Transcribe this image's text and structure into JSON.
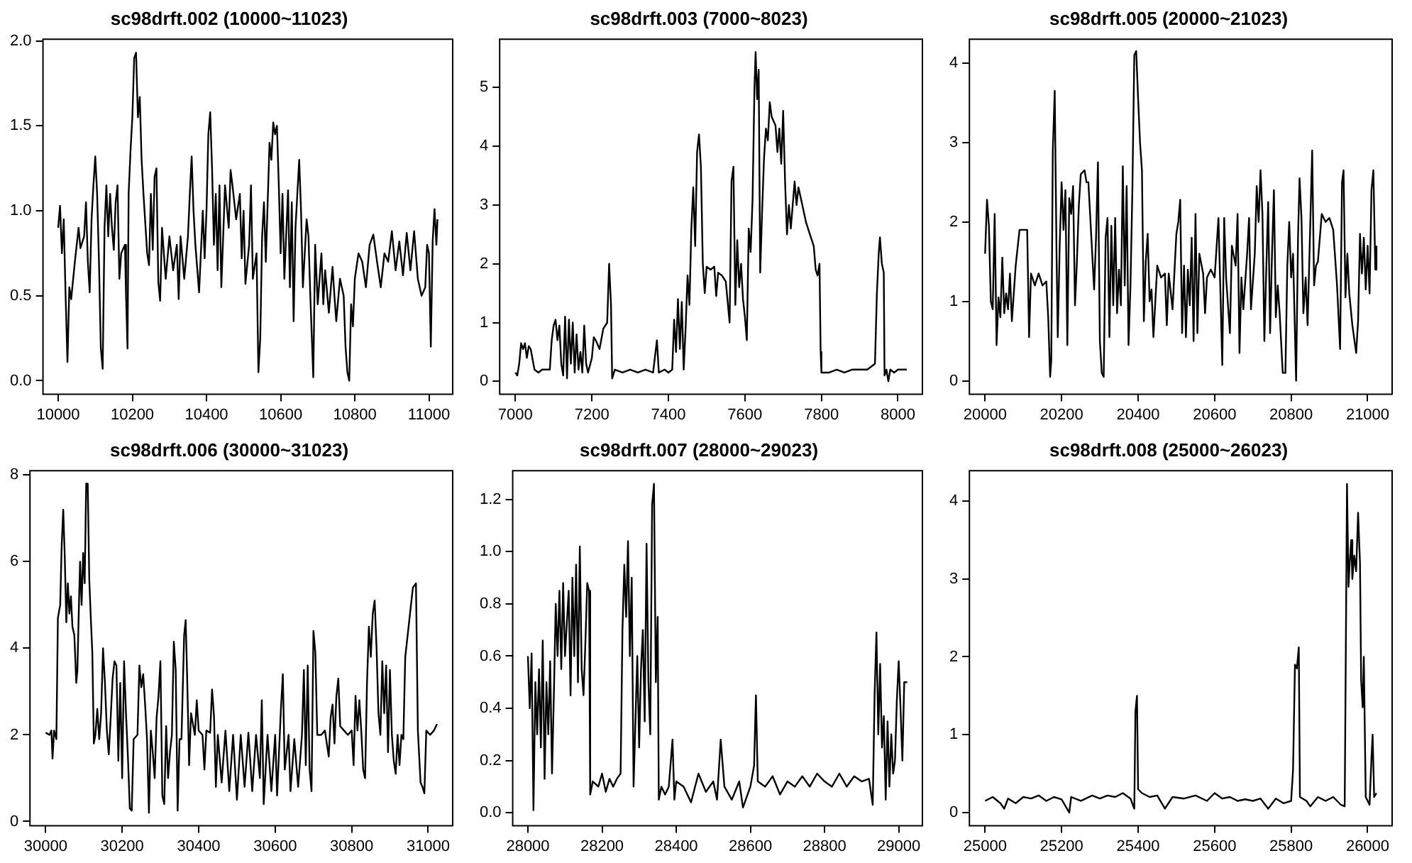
{
  "chart_data": [
    {
      "type": "line",
      "title": "sc98drft.002 (10000~11023)",
      "xlim": [
        9959,
        11064
      ],
      "xticks": [
        10000,
        10200,
        10400,
        10600,
        10800,
        11000
      ],
      "ylim": [
        -0.08,
        2.01
      ],
      "yticks": [
        {
          "value": 0,
          "label": "0.0"
        },
        {
          "value": 0.5,
          "label": "0.5"
        },
        {
          "value": 1,
          "label": "1.0"
        },
        {
          "value": 1.5,
          "label": "1.5"
        },
        {
          "value": 2,
          "label": "2.0"
        }
      ],
      "grid": false,
      "legend": false,
      "marker": "none",
      "line_style": "solid",
      "series": [
        {
          "color": "#000000",
          "x": [
            10000,
            10005,
            10010,
            10015,
            10020,
            10025,
            10030,
            10035,
            10045,
            10055,
            10060,
            10070,
            10075,
            10080,
            10085,
            10090,
            10095,
            10100,
            10105,
            10110,
            10115,
            10120,
            10125,
            10130,
            10135,
            10140,
            10145,
            10150,
            10155,
            10160,
            10165,
            10170,
            10180,
            10183,
            10187,
            10190,
            10195,
            10200,
            10205,
            10210,
            10215,
            10220,
            10225,
            10230,
            10240,
            10245,
            10250,
            10255,
            10260,
            10265,
            10270,
            10275,
            10280,
            10290,
            10300,
            10310,
            10320,
            10325,
            10330,
            10340,
            10350,
            10355,
            10360,
            10365,
            10370,
            10380,
            10390,
            10395,
            10400,
            10405,
            10410,
            10415,
            10420,
            10425,
            10430,
            10435,
            10440,
            10450,
            10460,
            10465,
            10470,
            10480,
            10490,
            10495,
            10500,
            10505,
            10515,
            10520,
            10525,
            10535,
            10540,
            10545,
            10550,
            10555,
            10560,
            10570,
            10575,
            10580,
            10585,
            10590,
            10595,
            10600,
            10605,
            10610,
            10620,
            10625,
            10630,
            10635,
            10640,
            10650,
            10655,
            10660,
            10670,
            10675,
            10680,
            10688,
            10693,
            10700,
            10710,
            10715,
            10720,
            10730,
            10740,
            10745,
            10750,
            10760,
            10770,
            10775,
            10780,
            10785,
            10790,
            10795,
            10800,
            10810,
            10820,
            10830,
            10840,
            10850,
            10860,
            10870,
            10880,
            10890,
            10900,
            10910,
            10920,
            10930,
            10940,
            10950,
            10960,
            10970,
            10980,
            10990,
            10995,
            11000,
            11005,
            11010,
            11015,
            11020,
            11023
          ],
          "values": [
            0.9,
            1.03,
            0.75,
            0.95,
            0.5,
            0.11,
            0.55,
            0.48,
            0.7,
            0.9,
            0.78,
            0.85,
            1.05,
            0.7,
            0.52,
            0.95,
            1.15,
            1.32,
            1.1,
            0.7,
            0.19,
            0.07,
            0.9,
            1.15,
            0.85,
            1.1,
            0.9,
            0.77,
            1.05,
            1.15,
            0.6,
            0.75,
            0.8,
            0.5,
            0.19,
            1.1,
            1.35,
            1.55,
            1.9,
            1.93,
            1.55,
            1.67,
            1.3,
            1.1,
            0.75,
            0.68,
            1.1,
            0.77,
            1.2,
            1.25,
            0.58,
            0.47,
            0.9,
            0.6,
            0.85,
            0.65,
            0.8,
            0.48,
            0.85,
            0.6,
            0.85,
            1.1,
            1.32,
            1.0,
            0.8,
            0.52,
            1.0,
            0.72,
            1.0,
            1.45,
            1.58,
            1.25,
            0.8,
            1.1,
            0.65,
            1.15,
            0.55,
            1.15,
            0.9,
            1.24,
            1.15,
            0.95,
            1.1,
            0.72,
            1.0,
            0.57,
            0.8,
            1.15,
            0.6,
            0.75,
            0.05,
            0.25,
            0.85,
            1.05,
            0.7,
            1.4,
            1.3,
            1.52,
            1.45,
            1.5,
            1.15,
            0.75,
            1.1,
            0.6,
            1.12,
            0.55,
            1.05,
            0.35,
            0.9,
            1.3,
            1.0,
            0.55,
            0.95,
            0.85,
            0.5,
            0.02,
            0.8,
            0.45,
            0.75,
            0.45,
            0.65,
            0.4,
            0.67,
            0.5,
            0.35,
            0.6,
            0.5,
            0.2,
            0.05,
            0.0,
            0.45,
            0.32,
            0.6,
            0.75,
            0.7,
            0.55,
            0.8,
            0.86,
            0.7,
            0.55,
            0.75,
            0.7,
            0.88,
            0.65,
            0.82,
            0.62,
            0.87,
            0.65,
            0.88,
            0.6,
            0.5,
            0.55,
            0.8,
            0.75,
            0.2,
            0.82,
            1.01,
            0.8,
            0.95
          ]
        }
      ]
    },
    {
      "type": "line",
      "title": "sc98drft.003 (7000~8023)",
      "xlim": [
        6959,
        8064
      ],
      "xticks": [
        7000,
        7200,
        7400,
        7600,
        7800,
        8000
      ],
      "ylim": [
        -0.22,
        5.82
      ],
      "yticks": [
        0,
        1,
        2,
        3,
        4,
        5
      ],
      "grid": false,
      "legend": false,
      "marker": "none",
      "line_style": "solid",
      "series": [
        {
          "color": "#000000",
          "x": [
            7000,
            7005,
            7010,
            7015,
            7020,
            7025,
            7030,
            7035,
            7040,
            7050,
            7060,
            7070,
            7080,
            7090,
            7095,
            7100,
            7105,
            7110,
            7115,
            7120,
            7125,
            7130,
            7135,
            7140,
            7145,
            7150,
            7155,
            7160,
            7165,
            7170,
            7175,
            7180,
            7185,
            7190,
            7200,
            7205,
            7210,
            7220,
            7230,
            7240,
            7245,
            7250,
            7253,
            7260,
            7280,
            7300,
            7320,
            7340,
            7360,
            7370,
            7375,
            7390,
            7400,
            7410,
            7415,
            7420,
            7425,
            7430,
            7435,
            7440,
            7445,
            7450,
            7455,
            7460,
            7465,
            7470,
            7475,
            7480,
            7485,
            7490,
            7495,
            7500,
            7510,
            7520,
            7525,
            7530,
            7540,
            7550,
            7560,
            7565,
            7570,
            7575,
            7580,
            7585,
            7590,
            7595,
            7600,
            7605,
            7610,
            7615,
            7620,
            7625,
            7628,
            7632,
            7636,
            7640,
            7645,
            7650,
            7655,
            7660,
            7665,
            7670,
            7680,
            7685,
            7690,
            7695,
            7700,
            7705,
            7710,
            7715,
            7720,
            7730,
            7735,
            7740,
            7750,
            7760,
            7770,
            7780,
            7785,
            7790,
            7795,
            7798,
            7800,
            7820,
            7840,
            7860,
            7880,
            7900,
            7920,
            7940,
            7945,
            7950,
            7953,
            7958,
            7963,
            7965,
            7970,
            7975,
            7980,
            7990,
            8000,
            8010,
            8023
          ],
          "values": [
            0.15,
            0.1,
            0.3,
            0.65,
            0.55,
            0.65,
            0.4,
            0.6,
            0.55,
            0.2,
            0.15,
            0.2,
            0.2,
            0.2,
            0.7,
            0.95,
            1.05,
            0.7,
            0.95,
            0.3,
            0.1,
            1.1,
            0.05,
            1.05,
            0.3,
            1.0,
            0.15,
            0.8,
            0.2,
            0.5,
            0.15,
            0.95,
            0.3,
            0.15,
            0.4,
            0.75,
            0.7,
            0.55,
            0.9,
            1.0,
            2.0,
            1.3,
            0.05,
            0.2,
            0.15,
            0.2,
            0.15,
            0.2,
            0.15,
            0.7,
            0.15,
            0.2,
            0.15,
            0.2,
            1.05,
            0.5,
            1.4,
            0.55,
            1.35,
            0.2,
            0.9,
            1.8,
            1.3,
            2.6,
            3.3,
            2.3,
            3.9,
            4.2,
            3.65,
            2.0,
            1.5,
            1.95,
            1.9,
            1.95,
            1.45,
            1.85,
            1.8,
            1.7,
            1.0,
            3.4,
            3.65,
            1.3,
            2.4,
            1.6,
            2.0,
            1.4,
            1.1,
            0.7,
            2.6,
            2.2,
            3.1,
            5.0,
            5.6,
            4.8,
            5.3,
            1.85,
            2.9,
            3.8,
            4.3,
            4.1,
            4.75,
            4.5,
            4.35,
            3.9,
            4.3,
            3.7,
            4.6,
            3.4,
            2.5,
            3.0,
            2.6,
            3.4,
            3.0,
            3.3,
            3.0,
            2.7,
            2.5,
            2.3,
            1.9,
            1.8,
            2.0,
            0.5,
            0.15,
            0.15,
            0.2,
            0.15,
            0.2,
            0.2,
            0.2,
            0.3,
            1.5,
            2.2,
            2.45,
            2.0,
            1.85,
            0.1,
            0.2,
            0.0,
            0.2,
            0.15,
            0.2,
            0.2,
            0.2
          ]
        }
      ]
    },
    {
      "type": "line",
      "title": "sc98drft.005 (20000~21023)",
      "xlim": [
        19959,
        21064
      ],
      "xticks": [
        20000,
        20200,
        20400,
        20600,
        20800,
        21000
      ],
      "ylim": [
        -0.17,
        4.3
      ],
      "yticks": [
        0,
        1,
        2,
        3,
        4
      ],
      "grid": false,
      "legend": false,
      "marker": "none",
      "line_style": "solid",
      "series": [
        {
          "color": "#000000",
          "x": [
            20000,
            20005,
            20010,
            20015,
            20020,
            20025,
            20030,
            20035,
            20040,
            20045,
            20050,
            20055,
            20060,
            20065,
            20070,
            20080,
            20090,
            20100,
            20110,
            20115,
            20120,
            20130,
            20140,
            20150,
            20160,
            20165,
            20170,
            20173,
            20177,
            20182,
            20187,
            20190,
            20195,
            20200,
            20205,
            20210,
            20215,
            20220,
            20225,
            20230,
            20235,
            20240,
            20245,
            20250,
            20260,
            20265,
            20270,
            20280,
            20285,
            20290,
            20295,
            20300,
            20305,
            20310,
            20315,
            20320,
            20325,
            20330,
            20335,
            20340,
            20345,
            20350,
            20355,
            20360,
            20365,
            20370,
            20375,
            20380,
            20385,
            20390,
            20395,
            20400,
            20405,
            20410,
            20415,
            20420,
            20425,
            20430,
            20435,
            20440,
            20450,
            20460,
            20470,
            20475,
            20480,
            20490,
            20500,
            20505,
            20510,
            20515,
            20520,
            20525,
            20530,
            20535,
            20540,
            20545,
            20550,
            20555,
            20560,
            20570,
            20575,
            20580,
            20590,
            20600,
            20610,
            20615,
            20620,
            20625,
            20630,
            20640,
            20645,
            20655,
            20660,
            20665,
            20670,
            20675,
            20685,
            20690,
            20695,
            20705,
            20710,
            20715,
            20720,
            20725,
            20730,
            20735,
            20740,
            20745,
            20750,
            20755,
            20760,
            20765,
            20770,
            20778,
            20785,
            20790,
            20795,
            20800,
            20805,
            20813,
            20818,
            20822,
            20827,
            20832,
            20838,
            20843,
            20848,
            20855,
            20860,
            20865,
            20870,
            20880,
            20890,
            20900,
            20910,
            20920,
            20928,
            20933,
            20937,
            20942,
            20947,
            20952,
            20960,
            20970,
            20975,
            20980,
            20985,
            20990,
            20995,
            21000,
            21005,
            21010,
            21015,
            21020,
            21023
          ],
          "values": [
            1.6,
            2.28,
            1.95,
            1.0,
            0.9,
            2.1,
            0.45,
            1.05,
            0.8,
            1.55,
            0.85,
            1.1,
            0.9,
            1.35,
            0.75,
            1.45,
            1.9,
            1.9,
            1.9,
            0.55,
            1.35,
            1.2,
            1.35,
            1.2,
            1.25,
            0.8,
            0.05,
            0.25,
            2.9,
            3.65,
            1.5,
            0.55,
            1.7,
            2.5,
            1.9,
            2.4,
            0.45,
            2.3,
            2.1,
            2.45,
            0.95,
            1.5,
            2.2,
            2.6,
            2.65,
            2.5,
            2.5,
            1.6,
            1.15,
            1.8,
            2.75,
            0.5,
            0.1,
            0.05,
            1.8,
            2.05,
            0.55,
            1.95,
            0.95,
            2.05,
            0.85,
            1.4,
            0.95,
            2.7,
            1.2,
            2.45,
            0.45,
            1.2,
            2.4,
            4.1,
            4.15,
            3.55,
            3.0,
            2.65,
            0.75,
            1.5,
            1.85,
            1.0,
            1.15,
            0.55,
            1.45,
            1.3,
            1.35,
            0.7,
            1.35,
            0.9,
            1.85,
            2.0,
            2.28,
            0.6,
            1.45,
            0.55,
            1.4,
            0.95,
            1.8,
            0.5,
            2.1,
            0.6,
            1.6,
            1.35,
            0.85,
            1.3,
            1.4,
            1.3,
            2.05,
            1.15,
            0.2,
            2.05,
            1.3,
            0.6,
            1.7,
            1.45,
            2.1,
            0.35,
            1.3,
            0.9,
            1.6,
            2.05,
            0.9,
            1.6,
            2.45,
            2.0,
            2.65,
            2.1,
            0.5,
            1.4,
            2.25,
            0.6,
            1.6,
            2.4,
            0.8,
            1.2,
            0.85,
            0.1,
            0.1,
            1.45,
            2.0,
            1.3,
            1.6,
            0.0,
            1.8,
            2.55,
            2.05,
            0.85,
            1.3,
            0.7,
            1.6,
            2.9,
            1.2,
            1.45,
            1.5,
            2.1,
            2.0,
            2.05,
            1.9,
            1.2,
            0.4,
            2.5,
            2.65,
            1.05,
            1.6,
            1.1,
            0.7,
            0.35,
            0.75,
            1.85,
            1.35,
            1.8,
            1.15,
            1.7,
            1.1,
            2.4,
            2.65,
            1.4,
            1.7
          ]
        }
      ]
    },
    {
      "type": "line",
      "title": "sc98drft.006 (30000~31023)",
      "xlim": [
        29959,
        31064
      ],
      "xticks": [
        30000,
        30200,
        30400,
        30600,
        30800,
        31000
      ],
      "ylim": [
        -0.1,
        8.1
      ],
      "yticks": [
        0,
        2,
        4,
        6,
        8
      ],
      "grid": false,
      "legend": false,
      "marker": "none",
      "line_style": "solid",
      "series": [
        {
          "color": "#000000",
          "x": [
            30000,
            30010,
            30015,
            30018,
            30022,
            30028,
            30032,
            30038,
            30042,
            30046,
            30050,
            30054,
            30058,
            30062,
            30066,
            30070,
            30075,
            30080,
            30083,
            30087,
            30090,
            30094,
            30098,
            30102,
            30106,
            30110,
            30114,
            30118,
            30122,
            30126,
            30130,
            30135,
            30140,
            30145,
            30150,
            30155,
            30160,
            30165,
            30170,
            30175,
            30180,
            30185,
            30190,
            30195,
            30200,
            30205,
            30210,
            30215,
            30220,
            30225,
            30230,
            30240,
            30245,
            30250,
            30255,
            30260,
            30265,
            30270,
            30275,
            30280,
            30285,
            30290,
            30295,
            30300,
            30305,
            30310,
            30315,
            30320,
            30325,
            30330,
            30335,
            30340,
            30345,
            30350,
            30355,
            30362,
            30366,
            30370,
            30375,
            30380,
            30390,
            30395,
            30400,
            30410,
            30415,
            30420,
            30430,
            30435,
            30440,
            30445,
            30450,
            30460,
            30470,
            30480,
            30490,
            30500,
            30510,
            30520,
            30530,
            30540,
            30550,
            30560,
            30565,
            30570,
            30580,
            30590,
            30600,
            30605,
            30615,
            30620,
            30625,
            30635,
            30640,
            30650,
            30660,
            30670,
            30675,
            30680,
            30685,
            30690,
            30695,
            30700,
            30705,
            30710,
            30720,
            30730,
            30740,
            30745,
            30750,
            30755,
            30760,
            30765,
            30770,
            30780,
            30790,
            30800,
            30805,
            30810,
            30815,
            30820,
            30825,
            30830,
            30835,
            30840,
            30845,
            30850,
            30855,
            30860,
            30865,
            30870,
            30875,
            30880,
            30885,
            30890,
            30895,
            30900,
            30905,
            30910,
            30915,
            30920,
            30925,
            30930,
            30935,
            30940,
            30960,
            30968,
            30973,
            30980,
            30985,
            30990,
            30995,
            31005,
            31015,
            31023
          ],
          "values": [
            2.05,
            2.0,
            2.1,
            1.45,
            2.1,
            1.9,
            4.7,
            5.0,
            6.4,
            7.2,
            6.1,
            4.6,
            5.5,
            4.8,
            5.2,
            4.5,
            4.3,
            3.2,
            3.5,
            5.0,
            6.0,
            5.0,
            6.2,
            5.5,
            7.8,
            7.8,
            5.6,
            4.7,
            3.9,
            1.8,
            2.0,
            2.6,
            1.9,
            2.5,
            4.0,
            3.2,
            2.1,
            1.55,
            2.4,
            3.3,
            3.7,
            3.6,
            1.4,
            3.2,
            1.0,
            3.7,
            2.5,
            1.5,
            0.3,
            0.25,
            1.9,
            2.0,
            3.6,
            3.1,
            3.4,
            2.7,
            1.9,
            0.2,
            2.1,
            1.6,
            1.0,
            2.4,
            2.9,
            3.7,
            0.6,
            0.4,
            2.2,
            1.0,
            1.6,
            2.0,
            4.15,
            3.5,
            0.25,
            1.9,
            1.9,
            4.3,
            4.65,
            3.3,
            1.3,
            2.5,
            2.0,
            2.8,
            2.1,
            2.0,
            1.2,
            2.1,
            2.05,
            3.05,
            2.45,
            0.8,
            2.0,
            0.9,
            2.1,
            0.7,
            2.0,
            0.5,
            2.0,
            0.8,
            2.05,
            0.7,
            2.0,
            1.0,
            2.8,
            0.4,
            2.0,
            0.7,
            2.0,
            0.6,
            2.6,
            3.4,
            1.2,
            2.0,
            0.7,
            1.9,
            0.8,
            2.0,
            3.5,
            1.3,
            3.6,
            1.2,
            0.7,
            4.4,
            3.9,
            2.0,
            2.0,
            2.1,
            1.5,
            2.4,
            2.7,
            1.8,
            2.9,
            3.3,
            2.2,
            2.1,
            2.0,
            2.1,
            1.3,
            2.9,
            2.1,
            2.8,
            2.1,
            1.2,
            1.0,
            3.2,
            4.5,
            3.8,
            4.8,
            5.1,
            4.0,
            2.5,
            2.0,
            3.7,
            2.5,
            3.6,
            1.6,
            3.5,
            2.0,
            1.4,
            1.1,
            2.0,
            1.3,
            2.0,
            1.9,
            3.8,
            5.4,
            5.5,
            2.1,
            0.9,
            0.8,
            0.65,
            2.1,
            2.0,
            2.1,
            2.25
          ]
        }
      ]
    },
    {
      "type": "line",
      "title": "sc98drft.007 (28000~29023)",
      "xlim": [
        27959,
        29064
      ],
      "xticks": [
        28000,
        28200,
        28400,
        28600,
        28800,
        29000
      ],
      "ylim": [
        -0.05,
        1.31
      ],
      "yticks": [
        {
          "value": 0,
          "label": "0.0"
        },
        {
          "value": 0.2,
          "label": "0.2"
        },
        {
          "value": 0.4,
          "label": "0.4"
        },
        {
          "value": 0.6,
          "label": "0.6"
        },
        {
          "value": 0.8,
          "label": "0.8"
        },
        {
          "value": 1,
          "label": "1.0"
        },
        {
          "value": 1.2,
          "label": "1.2"
        }
      ],
      "grid": false,
      "legend": false,
      "marker": "none",
      "line_style": "solid",
      "series": [
        {
          "color": "#000000",
          "x": [
            28000,
            28005,
            28010,
            28015,
            28020,
            28025,
            28030,
            28035,
            28040,
            28045,
            28050,
            28055,
            28060,
            28065,
            28070,
            28075,
            28080,
            28085,
            28090,
            28095,
            28100,
            28110,
            28115,
            28120,
            28125,
            28130,
            28135,
            28140,
            28145,
            28150,
            28155,
            28160,
            28165,
            28168,
            28175,
            28190,
            28200,
            28210,
            28220,
            28230,
            28240,
            28250,
            28255,
            28260,
            28265,
            28270,
            28275,
            28280,
            28285,
            28290,
            28295,
            28300,
            28305,
            28310,
            28315,
            28320,
            28325,
            28330,
            28335,
            28340,
            28345,
            28350,
            28353,
            28360,
            28370,
            28380,
            28390,
            28395,
            28400,
            28420,
            28440,
            28460,
            28480,
            28500,
            28510,
            28520,
            28530,
            28550,
            28570,
            28580,
            28600,
            28610,
            28615,
            28620,
            28640,
            28660,
            28680,
            28700,
            28720,
            28740,
            28760,
            28780,
            28800,
            28820,
            28840,
            28860,
            28880,
            28900,
            28920,
            28930,
            28935,
            28940,
            28945,
            28950,
            28955,
            28960,
            28965,
            28970,
            28975,
            28980,
            28985,
            28990,
            28995,
            29000,
            29005,
            29010,
            29015,
            29023
          ],
          "values": [
            0.6,
            0.4,
            0.61,
            0.01,
            0.5,
            0.3,
            0.55,
            0.25,
            0.66,
            0.13,
            0.5,
            0.3,
            0.58,
            0.15,
            0.45,
            0.8,
            0.6,
            0.85,
            0.55,
            0.88,
            0.6,
            0.85,
            0.45,
            0.9,
            0.6,
            0.95,
            0.5,
            1.02,
            0.55,
            0.45,
            0.65,
            0.88,
            0.85,
            0.07,
            0.12,
            0.1,
            0.15,
            0.08,
            0.13,
            0.1,
            0.13,
            0.15,
            0.7,
            0.95,
            0.75,
            1.04,
            0.6,
            0.9,
            0.1,
            0.35,
            0.6,
            0.25,
            0.55,
            0.7,
            0.35,
            1.03,
            0.5,
            0.3,
            1.18,
            1.26,
            0.5,
            0.75,
            0.05,
            0.1,
            0.07,
            0.1,
            0.28,
            0.05,
            0.12,
            0.1,
            0.04,
            0.15,
            0.08,
            0.12,
            0.05,
            0.28,
            0.1,
            0.05,
            0.12,
            0.02,
            0.1,
            0.18,
            0.45,
            0.12,
            0.1,
            0.14,
            0.07,
            0.12,
            0.1,
            0.14,
            0.1,
            0.15,
            0.12,
            0.1,
            0.15,
            0.1,
            0.14,
            0.12,
            0.13,
            0.03,
            0.45,
            0.69,
            0.3,
            0.57,
            0.25,
            0.37,
            0.05,
            0.35,
            0.1,
            0.3,
            0.15,
            0.2,
            0.43,
            0.58,
            0.4,
            0.2,
            0.5,
            0.5
          ]
        }
      ]
    },
    {
      "type": "line",
      "title": "sc98drft.008 (25000~26023)",
      "xlim": [
        24959,
        26064
      ],
      "xticks": [
        25000,
        25200,
        25400,
        25600,
        25800,
        26000
      ],
      "ylim": [
        -0.17,
        4.39
      ],
      "yticks": [
        0,
        1,
        2,
        3,
        4
      ],
      "grid": false,
      "legend": false,
      "marker": "none",
      "line_style": "solid",
      "series": [
        {
          "color": "#000000",
          "x": [
            25000,
            25020,
            25040,
            25050,
            25060,
            25080,
            25100,
            25120,
            25140,
            25160,
            25180,
            25200,
            25220,
            25225,
            25250,
            25280,
            25300,
            25320,
            25340,
            25360,
            25380,
            25390,
            25393,
            25397,
            25400,
            25410,
            25430,
            25450,
            25470,
            25490,
            25520,
            25550,
            25580,
            25600,
            25620,
            25640,
            25660,
            25680,
            25700,
            25720,
            25740,
            25760,
            25780,
            25800,
            25805,
            25810,
            25815,
            25820,
            25823,
            25840,
            25850,
            25870,
            25890,
            25910,
            25930,
            25940,
            25942,
            25946,
            25950,
            25953,
            25957,
            25960,
            25965,
            25970,
            25975,
            25980,
            25983,
            25987,
            25990,
            25995,
            26000,
            26005,
            26010,
            26013,
            26017,
            26023
          ],
          "values": [
            0.15,
            0.2,
            0.12,
            0.05,
            0.18,
            0.12,
            0.2,
            0.18,
            0.22,
            0.15,
            0.2,
            0.17,
            0.0,
            0.2,
            0.15,
            0.22,
            0.18,
            0.22,
            0.2,
            0.25,
            0.18,
            0.05,
            1.3,
            1.5,
            0.3,
            0.25,
            0.2,
            0.22,
            0.05,
            0.2,
            0.18,
            0.22,
            0.15,
            0.25,
            0.18,
            0.2,
            0.15,
            0.17,
            0.15,
            0.18,
            0.05,
            0.18,
            0.12,
            0.15,
            0.55,
            1.9,
            1.85,
            2.12,
            0.2,
            0.15,
            0.08,
            0.2,
            0.15,
            0.2,
            0.1,
            0.08,
            1.4,
            4.22,
            2.9,
            3.2,
            3.5,
            3.0,
            3.3,
            3.1,
            3.85,
            3.2,
            1.7,
            1.35,
            2.0,
            0.2,
            0.15,
            0.1,
            0.7,
            1.0,
            0.2,
            0.25
          ]
        }
      ]
    }
  ]
}
